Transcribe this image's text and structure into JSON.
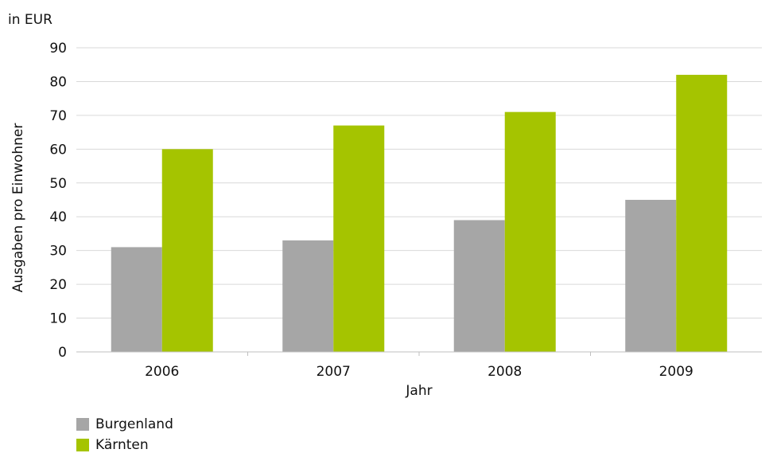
{
  "chart_data": {
    "type": "bar",
    "unit_label": "in EUR",
    "ylabel": "Ausgaben pro Einwohner",
    "xlabel": "Jahr",
    "categories": [
      "2006",
      "2007",
      "2008",
      "2009"
    ],
    "series": [
      {
        "name": "Burgenland",
        "values": [
          31,
          33,
          39,
          45
        ],
        "color": "#a6a6a6"
      },
      {
        "name": "Kärnten",
        "values": [
          60,
          67,
          71,
          82
        ],
        "color": "#a5c400"
      }
    ],
    "ylim": [
      0,
      90
    ],
    "yticks": [
      0,
      10,
      20,
      30,
      40,
      50,
      60,
      70,
      80,
      90
    ],
    "grid": true,
    "legend_position": "bottom-left"
  }
}
